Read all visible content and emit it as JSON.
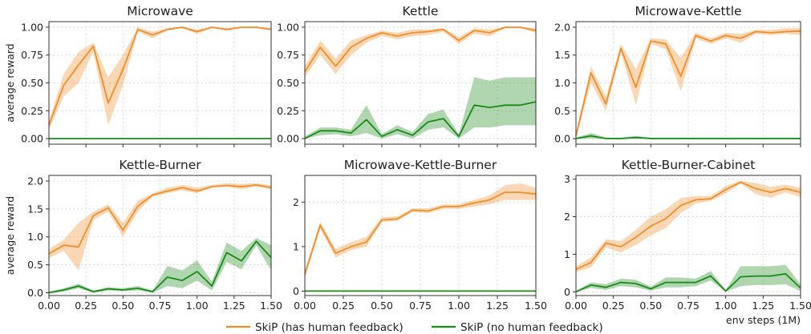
{
  "chart_data": [
    {
      "type": "line",
      "title": "Microwave",
      "ylabel": "average reward",
      "xlabel": "",
      "xlim": [
        0,
        1.5
      ],
      "ylim": [
        -0.05,
        1.05
      ],
      "xticks": [
        "0.00",
        "0.25",
        "0.50",
        "0.75",
        "1.00",
        "1.25",
        "1.50"
      ],
      "show_xtick_labels": false,
      "yticks": [
        "0.00",
        "0.25",
        "0.50",
        "0.75",
        "1.00"
      ],
      "grid": true,
      "x": [
        0,
        0.1,
        0.2,
        0.3,
        0.4,
        0.5,
        0.6,
        0.7,
        0.8,
        0.9,
        1.0,
        1.1,
        1.2,
        1.3,
        1.4,
        1.5
      ],
      "series": [
        {
          "color": "#f28e2b",
          "values": [
            0.12,
            0.48,
            0.66,
            0.83,
            0.32,
            0.62,
            0.98,
            0.93,
            0.98,
            1.0,
            0.96,
            1.0,
            0.98,
            1.0,
            1.0,
            0.98
          ],
          "lower": [
            0.08,
            0.38,
            0.5,
            0.78,
            0.12,
            0.48,
            0.96,
            0.9,
            0.97,
            0.99,
            0.94,
            0.99,
            0.97,
            0.99,
            0.99,
            0.97
          ],
          "upper": [
            0.16,
            0.58,
            0.78,
            0.86,
            0.55,
            0.75,
            1.0,
            0.96,
            0.99,
            1.0,
            0.98,
            1.0,
            0.99,
            1.0,
            1.0,
            0.99
          ]
        },
        {
          "color": "#1a8a1a",
          "values": [
            0,
            0,
            0,
            0,
            0,
            0,
            0,
            0,
            0,
            0,
            0,
            0,
            0,
            0,
            0,
            0
          ],
          "lower": [
            0,
            0,
            0,
            0,
            0,
            0,
            0,
            0,
            0,
            0,
            0,
            0,
            0,
            0,
            0,
            0
          ],
          "upper": [
            0,
            0,
            0,
            0,
            0,
            0,
            0,
            0,
            0,
            0,
            0,
            0,
            0,
            0,
            0,
            0
          ]
        }
      ]
    },
    {
      "type": "line",
      "title": "Kettle",
      "ylabel": "",
      "xlabel": "",
      "xlim": [
        0,
        1.5
      ],
      "ylim": [
        -0.05,
        1.05
      ],
      "xticks": [
        "0.00",
        "0.25",
        "0.50",
        "0.75",
        "1.00",
        "1.25",
        "1.50"
      ],
      "show_xtick_labels": false,
      "yticks": [
        "0.00",
        "0.25",
        "0.50",
        "0.75",
        "1.00"
      ],
      "grid": true,
      "x": [
        0,
        0.1,
        0.2,
        0.3,
        0.4,
        0.5,
        0.6,
        0.7,
        0.8,
        0.9,
        1.0,
        1.1,
        1.2,
        1.3,
        1.4,
        1.5
      ],
      "series": [
        {
          "color": "#f28e2b",
          "values": [
            0.6,
            0.82,
            0.65,
            0.82,
            0.9,
            0.95,
            0.92,
            0.95,
            0.96,
            0.98,
            0.88,
            0.97,
            0.95,
            1.0,
            1.0,
            0.97
          ],
          "lower": [
            0.55,
            0.75,
            0.58,
            0.75,
            0.86,
            0.92,
            0.89,
            0.92,
            0.93,
            0.96,
            0.85,
            0.94,
            0.92,
            0.99,
            0.99,
            0.95
          ],
          "upper": [
            0.65,
            0.88,
            0.72,
            0.88,
            0.93,
            0.97,
            0.95,
            0.98,
            0.98,
            0.99,
            0.91,
            0.99,
            0.98,
            1.0,
            1.0,
            0.99
          ]
        },
        {
          "color": "#1a8a1a",
          "values": [
            0.0,
            0.07,
            0.07,
            0.05,
            0.17,
            0.02,
            0.08,
            0.03,
            0.15,
            0.18,
            0.02,
            0.3,
            0.28,
            0.3,
            0.3,
            0.33
          ],
          "lower": [
            0.0,
            0.03,
            0.04,
            0.02,
            0.05,
            0.0,
            0.04,
            0.0,
            0.08,
            0.1,
            0.0,
            0.1,
            0.1,
            0.12,
            0.12,
            0.12
          ],
          "upper": [
            0.02,
            0.1,
            0.1,
            0.08,
            0.3,
            0.04,
            0.12,
            0.06,
            0.22,
            0.26,
            0.04,
            0.55,
            0.52,
            0.55,
            0.55,
            0.55
          ]
        }
      ]
    },
    {
      "type": "line",
      "title": "Microwave-Kettle",
      "ylabel": "",
      "xlabel": "",
      "xlim": [
        0,
        1.5
      ],
      "ylim": [
        -0.1,
        2.1
      ],
      "xticks": [
        "0.00",
        "0.25",
        "0.50",
        "0.75",
        "1.00",
        "1.25",
        "1.50"
      ],
      "show_xtick_labels": false,
      "yticks": [
        "0.0",
        "0.5",
        "1.0",
        "1.5",
        "2.0"
      ],
      "grid": true,
      "x": [
        0,
        0.1,
        0.2,
        0.3,
        0.4,
        0.5,
        0.6,
        0.7,
        0.8,
        0.9,
        1.0,
        1.1,
        1.2,
        1.3,
        1.4,
        1.5
      ],
      "series": [
        {
          "color": "#f28e2b",
          "values": [
            0.05,
            1.18,
            0.62,
            1.62,
            0.92,
            1.75,
            1.7,
            1.12,
            1.85,
            1.75,
            1.85,
            1.8,
            1.92,
            1.9,
            1.92,
            1.93
          ],
          "lower": [
            0.0,
            1.0,
            0.5,
            1.55,
            0.6,
            1.7,
            1.6,
            0.85,
            1.8,
            1.7,
            1.8,
            1.72,
            1.88,
            1.86,
            1.88,
            1.86
          ],
          "upper": [
            0.1,
            1.3,
            0.75,
            1.7,
            1.25,
            1.8,
            1.78,
            1.45,
            1.9,
            1.8,
            1.9,
            1.88,
            1.95,
            1.95,
            1.98,
            1.98
          ]
        },
        {
          "color": "#1a8a1a",
          "values": [
            0.0,
            0.05,
            0.0,
            0.0,
            0.02,
            0.0,
            0.0,
            0.0,
            0.0,
            0.0,
            0.0,
            0.0,
            0.0,
            0.0,
            0.0,
            0.0
          ],
          "lower": [
            0.0,
            0.0,
            0.0,
            0.0,
            0.0,
            0.0,
            0.0,
            0.0,
            0.0,
            0.0,
            0.0,
            0.0,
            0.0,
            0.0,
            0.0,
            0.0
          ],
          "upper": [
            0.02,
            0.1,
            0.02,
            0.02,
            0.05,
            0.02,
            0.02,
            0.02,
            0.02,
            0.02,
            0.02,
            0.02,
            0.02,
            0.02,
            0.02,
            0.02
          ]
        }
      ]
    },
    {
      "type": "line",
      "title": "Kettle-Burner",
      "ylabel": "average reward",
      "xlabel": "",
      "xlim": [
        0,
        1.5
      ],
      "ylim": [
        -0.05,
        2.1
      ],
      "xticks": [
        "0.00",
        "0.25",
        "0.50",
        "0.75",
        "1.00",
        "1.25",
        "1.50"
      ],
      "show_xtick_labels": true,
      "yticks": [
        "0.0",
        "0.5",
        "1.0",
        "1.5",
        "2.0"
      ],
      "grid": true,
      "x": [
        0,
        0.1,
        0.2,
        0.3,
        0.4,
        0.5,
        0.6,
        0.7,
        0.8,
        0.9,
        1.0,
        1.1,
        1.2,
        1.3,
        1.4,
        1.5
      ],
      "series": [
        {
          "color": "#f28e2b",
          "values": [
            0.7,
            0.85,
            0.82,
            1.38,
            1.52,
            1.12,
            1.55,
            1.75,
            1.82,
            1.88,
            1.82,
            1.9,
            1.92,
            1.9,
            1.93,
            1.88
          ],
          "lower": [
            0.62,
            0.75,
            0.4,
            1.3,
            1.45,
            1.0,
            1.45,
            1.72,
            1.78,
            1.83,
            1.78,
            1.88,
            1.9,
            1.85,
            1.9,
            1.85
          ],
          "upper": [
            0.78,
            0.95,
            1.25,
            1.45,
            1.58,
            1.25,
            1.65,
            1.78,
            1.88,
            1.93,
            1.88,
            1.93,
            1.96,
            1.95,
            1.96,
            1.92
          ]
        },
        {
          "color": "#1a8a1a",
          "values": [
            0.0,
            0.05,
            0.12,
            0.02,
            0.07,
            0.05,
            0.08,
            0.02,
            0.28,
            0.22,
            0.38,
            0.12,
            0.72,
            0.57,
            0.92,
            0.63
          ],
          "lower": [
            0.0,
            0.02,
            0.08,
            0.0,
            0.04,
            0.03,
            0.04,
            0.0,
            0.12,
            0.08,
            0.22,
            0.04,
            0.55,
            0.42,
            0.85,
            0.4
          ],
          "upper": [
            0.02,
            0.08,
            0.16,
            0.04,
            0.1,
            0.08,
            0.12,
            0.04,
            0.48,
            0.4,
            0.58,
            0.2,
            0.9,
            0.75,
            0.98,
            0.85
          ]
        }
      ]
    },
    {
      "type": "line",
      "title": "Microwave-Kettle-Burner",
      "ylabel": "",
      "xlabel": "",
      "xlim": [
        0,
        1.5
      ],
      "ylim": [
        -0.1,
        2.6
      ],
      "xticks": [
        "0.00",
        "0.25",
        "0.50",
        "0.75",
        "1.00",
        "1.25",
        "1.50"
      ],
      "show_xtick_labels": true,
      "yticks": [
        "0",
        "1",
        "2"
      ],
      "grid": true,
      "x": [
        0,
        0.1,
        0.2,
        0.3,
        0.4,
        0.5,
        0.6,
        0.7,
        0.8,
        0.9,
        1.0,
        1.1,
        1.2,
        1.3,
        1.4,
        1.5
      ],
      "series": [
        {
          "color": "#f28e2b",
          "values": [
            0.38,
            1.48,
            0.85,
            1.0,
            1.1,
            1.6,
            1.62,
            1.82,
            1.8,
            1.9,
            1.9,
            1.98,
            2.05,
            2.22,
            2.22,
            2.18
          ],
          "lower": [
            0.3,
            1.4,
            0.75,
            0.92,
            1.0,
            1.55,
            1.58,
            1.78,
            1.75,
            1.85,
            1.85,
            1.9,
            1.95,
            2.05,
            2.05,
            2.05
          ],
          "upper": [
            0.46,
            1.56,
            0.95,
            1.1,
            1.22,
            1.66,
            1.68,
            1.86,
            1.86,
            1.95,
            1.95,
            2.05,
            2.15,
            2.38,
            2.42,
            2.32
          ]
        },
        {
          "color": "#1a8a1a",
          "values": [
            0,
            0,
            0,
            0,
            0,
            0,
            0,
            0,
            0,
            0,
            0,
            0,
            0,
            0,
            0,
            0
          ],
          "lower": [
            0,
            0,
            0,
            0,
            0,
            0,
            0,
            0,
            0,
            0,
            0,
            0,
            0,
            0,
            0,
            0
          ],
          "upper": [
            0,
            0,
            0,
            0,
            0,
            0,
            0,
            0,
            0,
            0,
            0,
            0,
            0,
            0,
            0,
            0
          ]
        }
      ]
    },
    {
      "type": "line",
      "title": "Kettle-Burner-Cabinet",
      "ylabel": "",
      "xlabel": "env steps (1M)",
      "xlim": [
        0,
        1.5
      ],
      "ylim": [
        -0.1,
        3.1
      ],
      "xticks": [
        "0.00",
        "0.25",
        "0.50",
        "0.75",
        "1.00",
        "1.25",
        "1.50"
      ],
      "show_xtick_labels": true,
      "yticks": [
        "0",
        "1",
        "2",
        "3"
      ],
      "grid": true,
      "x": [
        0,
        0.1,
        0.2,
        0.3,
        0.4,
        0.5,
        0.6,
        0.7,
        0.8,
        0.9,
        1.0,
        1.1,
        1.2,
        1.3,
        1.4,
        1.5
      ],
      "series": [
        {
          "color": "#f28e2b",
          "values": [
            0.6,
            0.78,
            1.3,
            1.2,
            1.45,
            1.75,
            1.95,
            2.3,
            2.45,
            2.48,
            2.72,
            2.92,
            2.75,
            2.65,
            2.75,
            2.65
          ],
          "lower": [
            0.52,
            0.65,
            1.18,
            1.05,
            1.25,
            1.5,
            1.7,
            2.1,
            2.35,
            2.42,
            2.62,
            2.88,
            2.6,
            2.5,
            2.65,
            2.52
          ],
          "upper": [
            0.68,
            0.92,
            1.4,
            1.35,
            1.65,
            2.0,
            2.2,
            2.5,
            2.55,
            2.55,
            2.82,
            2.96,
            2.9,
            2.8,
            2.85,
            2.78
          ]
        },
        {
          "color": "#1a8a1a",
          "values": [
            0.0,
            0.18,
            0.12,
            0.25,
            0.22,
            0.08,
            0.25,
            0.25,
            0.25,
            0.42,
            0.02,
            0.4,
            0.42,
            0.42,
            0.48,
            0.1
          ],
          "lower": [
            0.0,
            0.1,
            0.05,
            0.15,
            0.12,
            0.03,
            0.12,
            0.12,
            0.15,
            0.3,
            0.0,
            0.15,
            0.18,
            0.18,
            0.2,
            0.02
          ],
          "upper": [
            0.02,
            0.25,
            0.2,
            0.35,
            0.32,
            0.14,
            0.38,
            0.38,
            0.35,
            0.55,
            0.05,
            0.68,
            0.68,
            0.68,
            0.72,
            0.2
          ]
        }
      ]
    }
  ],
  "legend": {
    "position": "bottom-center",
    "items": [
      {
        "label": "SkiP (has human feedback)",
        "color": "#f28e2b"
      },
      {
        "label": "SkiP (no human feedback)",
        "color": "#1a8a1a"
      }
    ]
  }
}
